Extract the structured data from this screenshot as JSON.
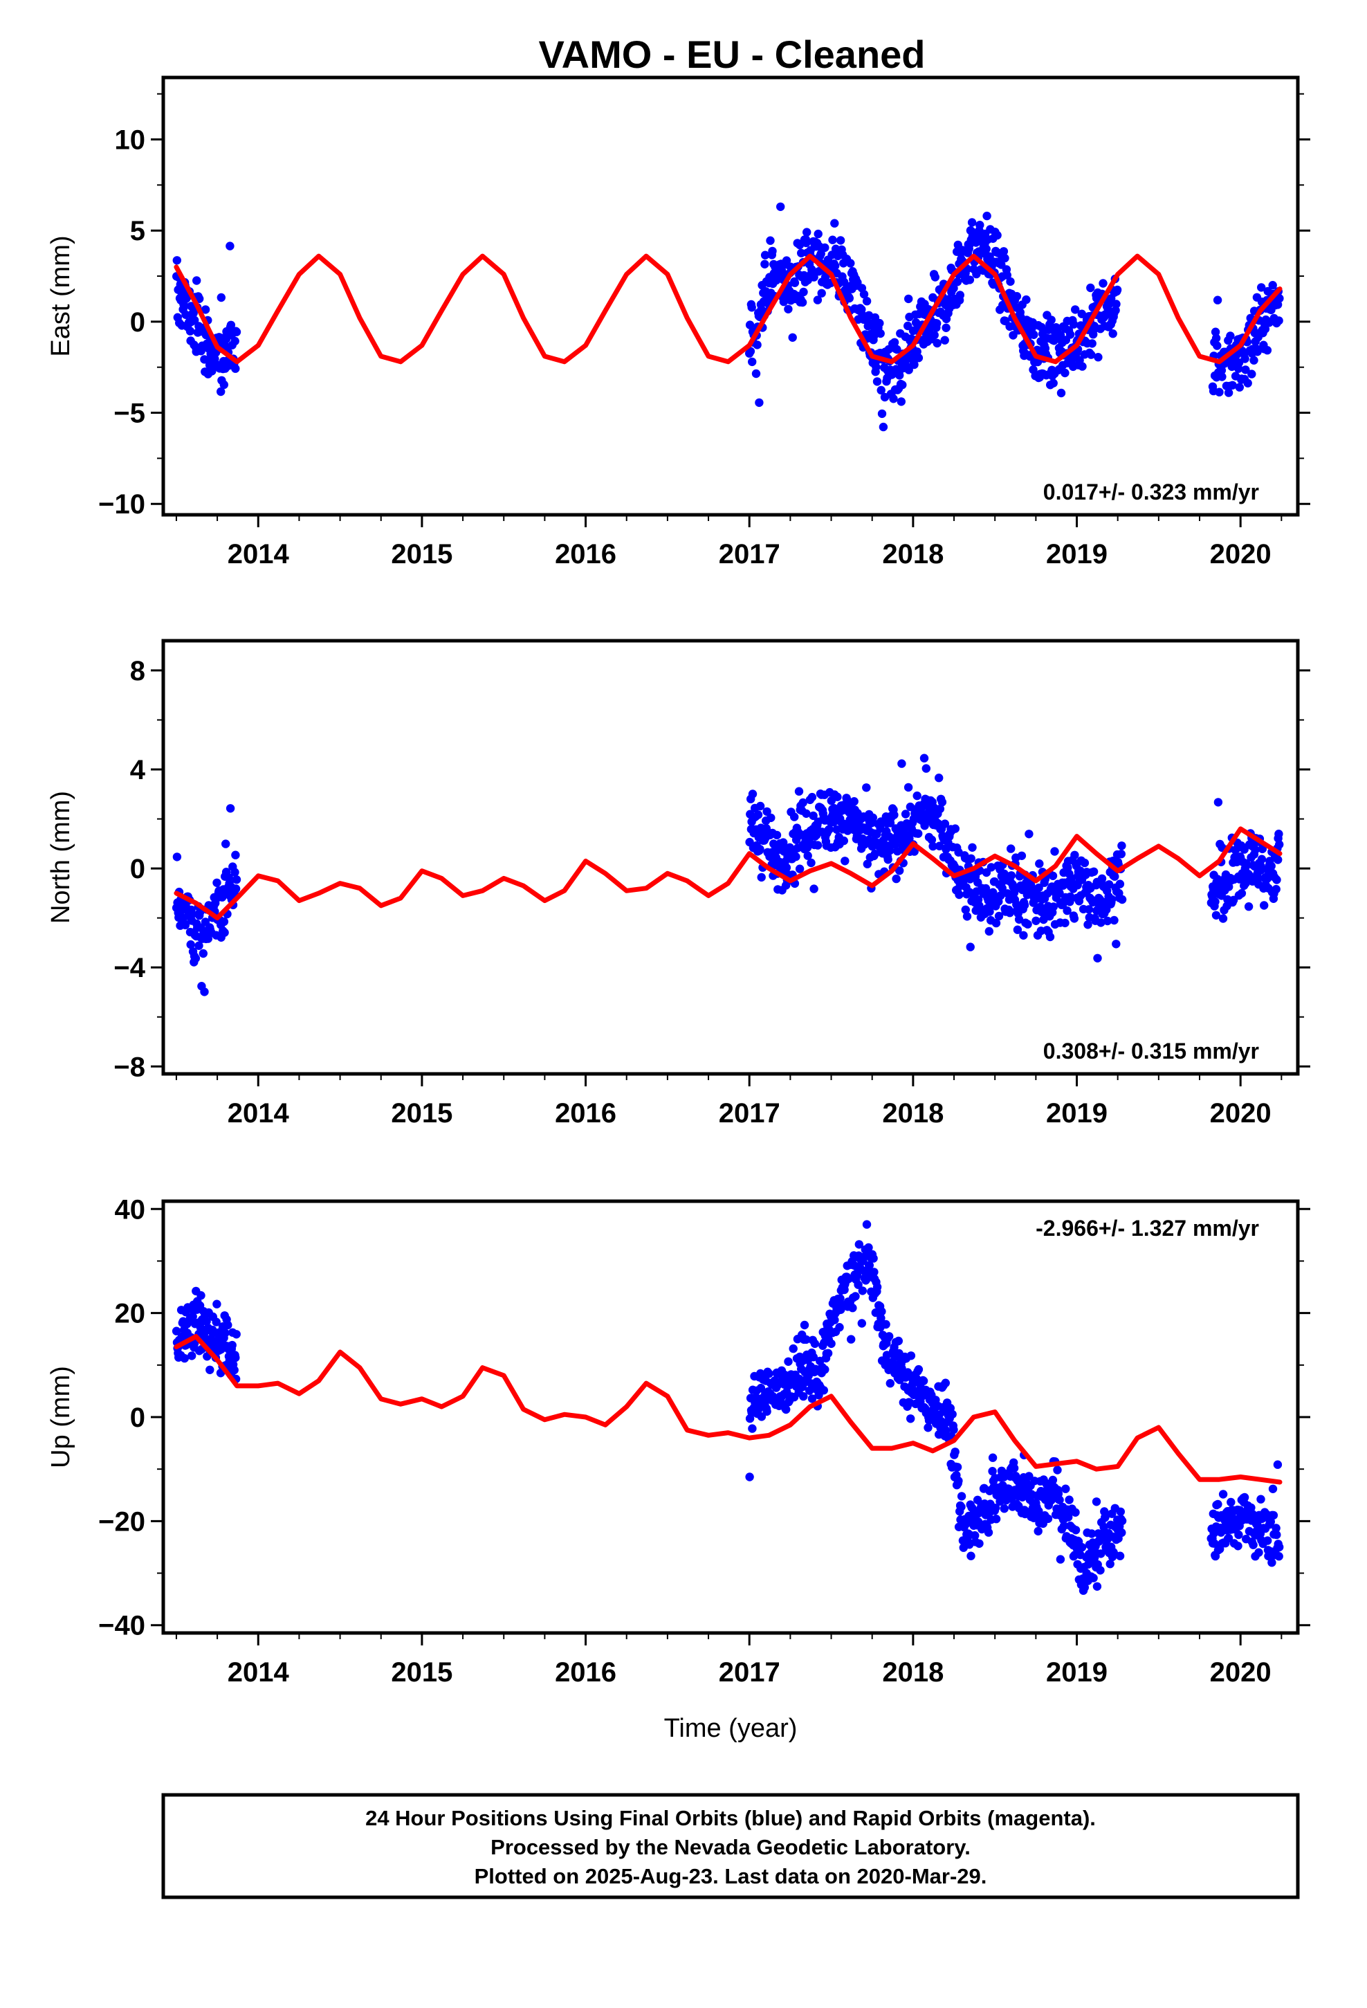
{
  "title": "VAMO  - EU - Cleaned",
  "footer": {
    "lines": [
      "24 Hour Positions Using Final Orbits (blue) and Rapid Orbits (magenta).",
      "Processed by the Nevada Geodetic Laboratory.",
      "Plotted on 2025-Aug-23. Last data on 2020-Mar-29."
    ]
  },
  "colors": {
    "data_points": "#0000ff",
    "model_line": "#ff0000",
    "frame": "#000000"
  },
  "chart_data": [
    {
      "type": "scatter",
      "ylabel": "East (mm)",
      "xlabel": "",
      "xlim": [
        2013.42,
        2020.35
      ],
      "ylim": [
        -10.6,
        13.4
      ],
      "xticks": [
        2014,
        2015,
        2016,
        2017,
        2018,
        2019,
        2020
      ],
      "yticks": [
        -10,
        -5,
        0,
        5,
        10
      ],
      "ytick_labels": [
        "−10",
        "−5",
        "0",
        "5",
        "10"
      ],
      "rate_text": "0.017+/- 0.323 mm/yr",
      "rate_position": "bottom-right",
      "data_segments": [
        {
          "start": 2013.5,
          "end": 2013.87
        },
        {
          "start": 2017.0,
          "end": 2018.29
        },
        {
          "start": 2018.29,
          "end": 2019.25
        },
        {
          "start": 2019.83,
          "end": 2020.24
        }
      ],
      "series": [
        {
          "kind": "points",
          "x": [
            2013.52,
            2013.57,
            2013.62,
            2013.66,
            2013.7,
            2013.75,
            2013.79,
            2013.84,
            2017.03,
            2017.1,
            2017.18,
            2017.26,
            2017.34,
            2017.42,
            2017.5,
            2017.58,
            2017.66,
            2017.74,
            2017.82,
            2017.9,
            2017.98,
            2018.06,
            2018.14,
            2018.22,
            2018.3,
            2018.38,
            2018.46,
            2018.54,
            2018.62,
            2018.7,
            2018.78,
            2018.86,
            2018.94,
            2019.05,
            2019.15,
            2019.25,
            2019.85,
            2019.93,
            2020.01,
            2020.09,
            2020.17,
            2020.24
          ],
          "y": [
            1.5,
            0.6,
            0.0,
            -0.8,
            -1.4,
            -2.0,
            -2.2,
            -1.8,
            -0.6,
            1.8,
            2.8,
            1.8,
            3.4,
            3.0,
            3.2,
            2.4,
            1.2,
            -0.8,
            -2.6,
            -3.2,
            -2.0,
            -0.6,
            0.2,
            1.3,
            3.0,
            4.2,
            4.0,
            2.3,
            0.5,
            -0.8,
            -1.6,
            -1.9,
            -1.4,
            -0.6,
            0.4,
            1.0,
            -2.3,
            -2.6,
            -1.9,
            -0.8,
            0.4,
            1.6
          ]
        },
        {
          "kind": "model_line",
          "x": [
            2013.5,
            2013.62,
            2013.75,
            2013.87,
            2014.0,
            2014.12,
            2014.25,
            2014.37,
            2014.5,
            2014.62,
            2014.75,
            2014.87,
            2015.0,
            2015.12,
            2015.25,
            2015.37,
            2015.5,
            2015.62,
            2015.75,
            2015.87,
            2016.0,
            2016.12,
            2016.25,
            2016.37,
            2016.5,
            2016.62,
            2016.75,
            2016.87,
            2017.0,
            2017.12,
            2017.25,
            2017.37,
            2017.5,
            2017.62,
            2017.75,
            2017.87,
            2018.0,
            2018.12,
            2018.25,
            2018.37,
            2018.5,
            2018.62,
            2018.75,
            2018.87,
            2019.0,
            2019.12,
            2019.25,
            2019.37,
            2019.5,
            2019.62,
            2019.75,
            2019.87,
            2020.0,
            2020.12,
            2020.24
          ],
          "y": [
            3.0,
            1.0,
            -1.4,
            -2.2,
            -1.3,
            0.6,
            2.6,
            3.6,
            2.6,
            0.2,
            -1.9,
            -2.2,
            -1.3,
            0.6,
            2.6,
            3.6,
            2.6,
            0.2,
            -1.9,
            -2.2,
            -1.3,
            0.6,
            2.6,
            3.6,
            2.6,
            0.2,
            -1.9,
            -2.2,
            -1.3,
            0.6,
            2.6,
            3.6,
            2.6,
            0.2,
            -1.9,
            -2.2,
            -1.3,
            0.6,
            2.6,
            3.6,
            2.6,
            0.2,
            -1.9,
            -2.2,
            -1.3,
            0.6,
            2.6,
            3.6,
            2.6,
            0.2,
            -1.9,
            -2.2,
            -1.3,
            0.6,
            1.8
          ]
        }
      ]
    },
    {
      "type": "scatter",
      "ylabel": "North (mm)",
      "xlabel": "",
      "xlim": [
        2013.42,
        2020.35
      ],
      "ylim": [
        -8.3,
        9.2
      ],
      "xticks": [
        2014,
        2015,
        2016,
        2017,
        2018,
        2019,
        2020
      ],
      "yticks": [
        -8,
        -4,
        0,
        4,
        8
      ],
      "ytick_labels": [
        "−8",
        "−4",
        "0",
        "4",
        "8"
      ],
      "rate_text": "0.308+/- 0.315 mm/yr",
      "rate_position": "bottom-right",
      "data_segments": [
        {
          "start": 2013.5,
          "end": 2013.87
        },
        {
          "start": 2017.0,
          "end": 2018.24
        },
        {
          "start": 2018.24,
          "end": 2019.28
        },
        {
          "start": 2019.82,
          "end": 2020.24
        }
      ],
      "series": [
        {
          "kind": "points",
          "x": [
            2013.52,
            2013.57,
            2013.62,
            2013.66,
            2013.7,
            2013.75,
            2013.79,
            2013.84,
            2017.03,
            2017.1,
            2017.18,
            2017.26,
            2017.34,
            2017.42,
            2017.5,
            2017.58,
            2017.66,
            2017.74,
            2017.82,
            2017.9,
            2017.98,
            2018.06,
            2018.14,
            2018.22,
            2018.3,
            2018.38,
            2018.46,
            2018.54,
            2018.62,
            2018.7,
            2018.78,
            2018.86,
            2018.94,
            2019.05,
            2019.15,
            2019.25,
            2019.85,
            2019.93,
            2020.01,
            2020.09,
            2020.17,
            2020.24
          ],
          "y": [
            -1.2,
            -1.8,
            -2.6,
            -3.2,
            -2.4,
            -1.4,
            -1.0,
            -0.5,
            1.6,
            1.2,
            0.2,
            0.8,
            1.4,
            1.8,
            2.2,
            2.0,
            1.6,
            1.0,
            0.8,
            1.2,
            1.6,
            2.2,
            2.0,
            0.8,
            -0.4,
            -0.8,
            -1.2,
            -0.8,
            -0.6,
            -1.0,
            -1.4,
            -1.2,
            -0.8,
            -0.6,
            -1.4,
            -0.2,
            -1.0,
            -0.6,
            0.2,
            0.4,
            -0.4,
            0.4
          ]
        },
        {
          "kind": "model_line",
          "x": [
            2013.5,
            2013.62,
            2013.75,
            2013.87,
            2014.0,
            2014.12,
            2014.25,
            2014.37,
            2014.5,
            2014.62,
            2014.75,
            2014.87,
            2015.0,
            2015.12,
            2015.25,
            2015.37,
            2015.5,
            2015.62,
            2015.75,
            2015.87,
            2016.0,
            2016.12,
            2016.25,
            2016.37,
            2016.5,
            2016.62,
            2016.75,
            2016.87,
            2017.0,
            2017.12,
            2017.25,
            2017.37,
            2017.5,
            2017.62,
            2017.75,
            2017.87,
            2018.0,
            2018.12,
            2018.25,
            2018.37,
            2018.5,
            2018.62,
            2018.75,
            2018.87,
            2019.0,
            2019.12,
            2019.25,
            2019.37,
            2019.5,
            2019.62,
            2019.75,
            2019.87,
            2020.0,
            2020.12,
            2020.24
          ],
          "y": [
            -1.0,
            -1.4,
            -2.0,
            -1.2,
            -0.3,
            -0.5,
            -1.3,
            -1.0,
            -0.6,
            -0.8,
            -1.5,
            -1.2,
            -0.1,
            -0.4,
            -1.1,
            -0.9,
            -0.4,
            -0.7,
            -1.3,
            -0.9,
            0.3,
            -0.2,
            -0.9,
            -0.8,
            -0.2,
            -0.5,
            -1.1,
            -0.6,
            0.6,
            0.0,
            -0.5,
            -0.1,
            0.2,
            -0.2,
            -0.7,
            -0.1,
            1.0,
            0.4,
            -0.3,
            0.0,
            0.5,
            0.1,
            -0.5,
            0.1,
            1.3,
            0.6,
            -0.1,
            0.4,
            0.9,
            0.4,
            -0.3,
            0.3,
            1.6,
            1.1,
            0.6
          ]
        }
      ]
    },
    {
      "type": "scatter",
      "ylabel": "Up (mm)",
      "xlabel": "Time (year)",
      "xlim": [
        2013.42,
        2020.35
      ],
      "ylim": [
        -41.5,
        41.5
      ],
      "xticks": [
        2014,
        2015,
        2016,
        2017,
        2018,
        2019,
        2020
      ],
      "yticks": [
        -40,
        -20,
        0,
        20,
        40
      ],
      "ytick_labels": [
        "−40",
        "−20",
        "0",
        "20",
        "40"
      ],
      "rate_text": "-2.966+/- 1.327 mm/yr",
      "rate_position": "top-right",
      "data_segments": [
        {
          "start": 2013.5,
          "end": 2013.87
        },
        {
          "start": 2017.0,
          "end": 2018.24
        },
        {
          "start": 2018.24,
          "end": 2019.28
        },
        {
          "start": 2019.82,
          "end": 2020.24
        }
      ],
      "series": [
        {
          "kind": "points",
          "x": [
            2013.52,
            2013.57,
            2013.62,
            2013.66,
            2013.7,
            2013.75,
            2013.79,
            2013.84,
            2017.03,
            2017.1,
            2017.18,
            2017.26,
            2017.34,
            2017.42,
            2017.5,
            2017.58,
            2017.66,
            2017.74,
            2017.82,
            2017.9,
            2017.98,
            2018.06,
            2018.14,
            2018.22,
            2018.3,
            2018.38,
            2018.46,
            2018.54,
            2018.62,
            2018.7,
            2018.78,
            2018.86,
            2018.94,
            2019.05,
            2019.15,
            2019.25,
            2019.85,
            2019.93,
            2020.01,
            2020.09,
            2020.17,
            2020.24
          ],
          "y": [
            14,
            17,
            19,
            18,
            16,
            15,
            14,
            12,
            2,
            6,
            4,
            8,
            10,
            6,
            18,
            24,
            28,
            30,
            14,
            10,
            6,
            4,
            2,
            0,
            -22,
            -20,
            -16,
            -14,
            -12,
            -16,
            -18,
            -12,
            -20,
            -30,
            -24,
            -22,
            -22,
            -20,
            -18,
            -22,
            -20,
            -24
          ]
        },
        {
          "kind": "model_line",
          "x": [
            2013.5,
            2013.62,
            2013.75,
            2013.87,
            2014.0,
            2014.12,
            2014.25,
            2014.37,
            2014.5,
            2014.62,
            2014.75,
            2014.87,
            2015.0,
            2015.12,
            2015.25,
            2015.37,
            2015.5,
            2015.62,
            2015.75,
            2015.87,
            2016.0,
            2016.12,
            2016.25,
            2016.37,
            2016.5,
            2016.62,
            2016.75,
            2016.87,
            2017.0,
            2017.12,
            2017.25,
            2017.37,
            2017.5,
            2017.62,
            2017.75,
            2017.87,
            2018.0,
            2018.12,
            2018.25,
            2018.37,
            2018.5,
            2018.62,
            2018.75,
            2018.87,
            2019.0,
            2019.12,
            2019.25,
            2019.37,
            2019.5,
            2019.62,
            2019.75,
            2019.87,
            2020.0,
            2020.12,
            2020.24
          ],
          "y": [
            13.5,
            15.5,
            11.0,
            6.0,
            6.0,
            6.5,
            4.5,
            7.0,
            12.5,
            9.5,
            3.5,
            2.5,
            3.5,
            2.0,
            4.0,
            9.5,
            8.0,
            1.5,
            -0.5,
            0.5,
            0.0,
            -1.5,
            2.0,
            6.5,
            4.0,
            -2.5,
            -3.5,
            -3.0,
            -4.0,
            -3.5,
            -1.5,
            2.0,
            4.0,
            -1.0,
            -6.0,
            -6.0,
            -5.0,
            -6.5,
            -4.5,
            0.0,
            1.0,
            -4.5,
            -9.5,
            -9.0,
            -8.5,
            -10.0,
            -9.5,
            -4.0,
            -2.0,
            -7.0,
            -12.0,
            -12.0,
            -11.5,
            -12.0,
            -12.5
          ]
        }
      ]
    }
  ]
}
